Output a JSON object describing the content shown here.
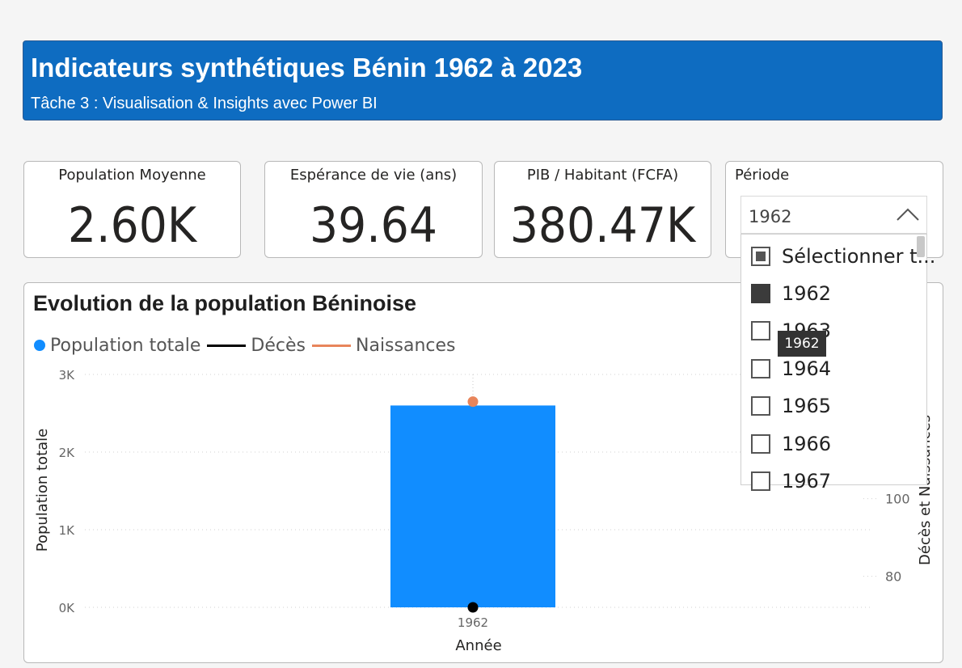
{
  "header": {
    "title": "Indicateurs synthétiques Bénin 1962 à 2023",
    "subtitle": "Tâche 3 : Visualisation & Insights avec Power BI"
  },
  "cards": [
    {
      "label": "Population Moyenne",
      "value": "2.60K"
    },
    {
      "label": "Espérance de vie (ans)",
      "value": "39.64"
    },
    {
      "label": "PIB / Habitant (FCFA)",
      "value": "380.47K"
    }
  ],
  "slicer": {
    "label": "Période",
    "selected": "1962",
    "items": [
      {
        "label": "Sélectionner t...",
        "state": "partial"
      },
      {
        "label": "1962",
        "state": "checked"
      },
      {
        "label": "1963",
        "state": "unchecked"
      },
      {
        "label": "1964",
        "state": "unchecked"
      },
      {
        "label": "1965",
        "state": "unchecked"
      },
      {
        "label": "1966",
        "state": "unchecked"
      },
      {
        "label": "1967",
        "state": "unchecked"
      }
    ],
    "tooltip": "1962"
  },
  "chart": {
    "title": "Evolution de la population Béninoise",
    "legend": [
      {
        "label": "Population totale",
        "color": "#118dff",
        "kind": "dot"
      },
      {
        "label": "Décès",
        "color": "#000000",
        "kind": "line"
      },
      {
        "label": "Naissances",
        "color": "#e8855b",
        "kind": "line"
      }
    ],
    "xlabel": "Année",
    "ylabel": "Population totale",
    "y2label": "Décès et Naissances",
    "y_ticks": [
      "0K",
      "1K",
      "2K",
      "3K"
    ],
    "y2_ticks": [
      "80",
      "100"
    ],
    "x_ticks": [
      "1962"
    ]
  },
  "chart_data": {
    "type": "bar",
    "categories": [
      "1962"
    ],
    "series": [
      {
        "name": "Population totale",
        "values": [
          2600
        ],
        "axis": "left",
        "kind": "bar",
        "color": "#118dff"
      },
      {
        "name": "Décès",
        "values": [
          72
        ],
        "axis": "right",
        "kind": "line",
        "color": "#000000"
      },
      {
        "name": "Naissances",
        "values": [
          125
        ],
        "axis": "right",
        "kind": "line",
        "color": "#e8855b"
      }
    ],
    "ylim": [
      0,
      3000
    ],
    "y2lim": [
      72,
      132
    ],
    "grid": true,
    "legend_position": "top-left"
  }
}
